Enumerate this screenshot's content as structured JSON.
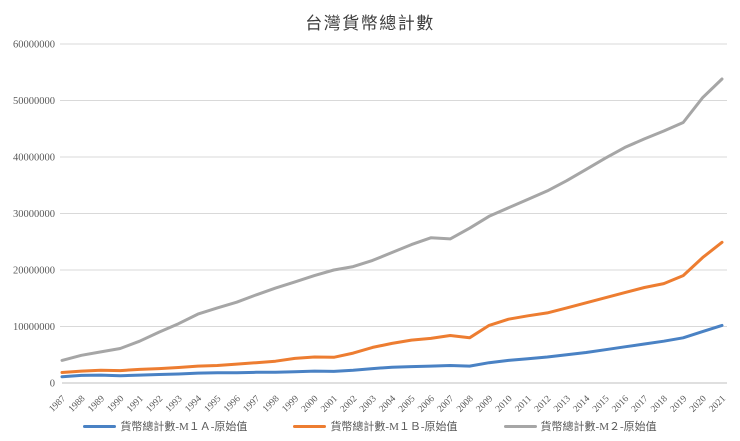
{
  "chart_data": {
    "type": "line",
    "title": "台灣貨幣總計數",
    "xlabel": "",
    "ylabel": "",
    "ylim": [
      0,
      60000000
    ],
    "y_ticks": [
      0,
      10000000,
      20000000,
      30000000,
      40000000,
      50000000,
      60000000
    ],
    "grid": "horizontal-major-gridlines",
    "legend_position": "bottom",
    "x": [
      "1987",
      "1988",
      "1989",
      "1990",
      "1991",
      "1992",
      "1993",
      "1994",
      "1995",
      "1996",
      "1997",
      "1998",
      "1999",
      "2000",
      "2001",
      "2002",
      "2003",
      "2004",
      "2005",
      "2006",
      "2007",
      "2008",
      "2009",
      "2010",
      "2011",
      "2012",
      "2013",
      "2014",
      "2015",
      "2016",
      "2017",
      "2018",
      "2019",
      "2020",
      "2021"
    ],
    "series": [
      {
        "name": "貨幣總計數-M１Ａ-原始值",
        "color": "#4a82c4",
        "values": [
          1100000,
          1350000,
          1400000,
          1300000,
          1400000,
          1500000,
          1600000,
          1750000,
          1800000,
          1800000,
          1900000,
          1900000,
          2000000,
          2100000,
          2050000,
          2250000,
          2550000,
          2800000,
          2900000,
          3000000,
          3100000,
          3000000,
          3600000,
          4000000,
          4300000,
          4600000,
          5000000,
          5400000,
          5900000,
          6400000,
          6900000,
          7400000,
          8000000,
          9100000,
          10200000
        ]
      },
      {
        "name": "貨幣總計數-M１Ｂ-原始值",
        "color": "#ed7d31",
        "values": [
          1850000,
          2100000,
          2250000,
          2200000,
          2400000,
          2550000,
          2750000,
          3000000,
          3100000,
          3350000,
          3600000,
          3850000,
          4350000,
          4600000,
          4550000,
          5300000,
          6300000,
          7000000,
          7600000,
          7900000,
          8400000,
          8000000,
          10200000,
          11300000,
          11900000,
          12400000,
          13300000,
          14200000,
          15100000,
          16000000,
          16900000,
          17600000,
          19000000,
          22200000,
          24900000
        ]
      },
      {
        "name": "貨幣總計數-M２-原始值",
        "color": "#a6a6a6",
        "values": [
          4000000,
          4900000,
          5500000,
          6100000,
          7400000,
          9000000,
          10500000,
          12200000,
          13300000,
          14300000,
          15600000,
          16800000,
          17900000,
          19000000,
          20000000,
          20600000,
          21700000,
          23100000,
          24500000,
          25700000,
          25500000,
          27400000,
          29500000,
          31000000,
          32500000,
          34000000,
          35800000,
          37800000,
          39800000,
          41700000,
          43200000,
          44600000,
          46100000,
          50500000,
          53800000
        ]
      }
    ],
    "styles": {
      "gridline_color": "#d9d9d9",
      "axis_line_color": "#bfbfbf",
      "tick_text_color": "#595959",
      "title_text_color": "#3d3d3d",
      "legend_text_color": "#595959",
      "line_width": 3
    }
  }
}
